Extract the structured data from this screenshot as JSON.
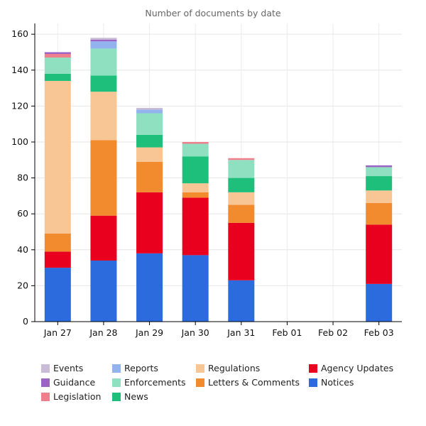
{
  "chart_data": {
    "type": "bar",
    "stacked": true,
    "title": "Number of documents by date",
    "xlabel": "",
    "ylabel": "",
    "ylim": [
      0,
      166
    ],
    "yticks": [
      0,
      20,
      40,
      60,
      80,
      100,
      120,
      140,
      160
    ],
    "grid": true,
    "legend_position": "bottom",
    "categories": [
      "Jan 27",
      "Jan 28",
      "Jan 29",
      "Jan 30",
      "Jan 31",
      "Feb 01",
      "Feb 02",
      "Feb 03"
    ],
    "series": [
      {
        "name": "Notices",
        "color": "#2b6bde",
        "values": [
          30,
          34,
          38,
          37,
          23,
          0,
          0,
          21
        ]
      },
      {
        "name": "Agency Updates",
        "color": "#e8001e",
        "values": [
          9,
          25,
          34,
          32,
          32,
          0,
          0,
          33
        ]
      },
      {
        "name": "Letters & Comments",
        "color": "#f28a2e",
        "values": [
          10,
          42,
          17,
          3,
          10,
          0,
          0,
          12
        ]
      },
      {
        "name": "Regulations",
        "color": "#f8c595",
        "values": [
          85,
          27,
          8,
          5,
          7,
          0,
          0,
          7
        ]
      },
      {
        "name": "News",
        "color": "#1dbf7a",
        "values": [
          4,
          9,
          7,
          15,
          8,
          0,
          0,
          8
        ]
      },
      {
        "name": "Enforcements",
        "color": "#8fe0c0",
        "values": [
          9,
          15,
          12,
          7,
          10,
          0,
          0,
          5
        ]
      },
      {
        "name": "Legislation",
        "color": "#f07f8e",
        "values": [
          2,
          0,
          0,
          1,
          1,
          0,
          0,
          0
        ]
      },
      {
        "name": "Reports",
        "color": "#93b3ee",
        "values": [
          0,
          4,
          2,
          0,
          0,
          0,
          0,
          0
        ]
      },
      {
        "name": "Guidance",
        "color": "#9a63c4",
        "values": [
          1,
          1,
          0,
          0,
          0,
          0,
          0,
          1
        ]
      },
      {
        "name": "Events",
        "color": "#c8bcd6",
        "values": [
          0,
          1,
          1,
          0,
          0,
          0,
          0,
          0
        ]
      }
    ],
    "legend_order": [
      "Events",
      "Reports",
      "Regulations",
      "Agency Updates",
      "Guidance",
      "Enforcements",
      "Letters & Comments",
      "Notices",
      "Legislation",
      "News"
    ]
  }
}
